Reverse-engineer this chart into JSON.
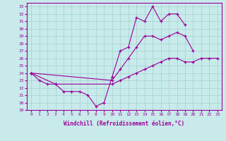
{
  "xlabel": "Windchill (Refroidissement éolien,°C)",
  "x": [
    0,
    1,
    2,
    3,
    4,
    5,
    6,
    7,
    8,
    9,
    10,
    11,
    12,
    13,
    14,
    15,
    16,
    17,
    18,
    19,
    20,
    21,
    22,
    23
  ],
  "line1": [
    24,
    23,
    22.5,
    22.5,
    21.5,
    21.5,
    21.5,
    21,
    19.5,
    20,
    23.5,
    27,
    27.5,
    31.5,
    31,
    33,
    31,
    32,
    32,
    30.5,
    null,
    null,
    null,
    null
  ],
  "line2": [
    24,
    null,
    null,
    null,
    null,
    null,
    null,
    null,
    null,
    null,
    23,
    24.5,
    26,
    27.5,
    29,
    29,
    28.5,
    29,
    29.5,
    29,
    27,
    null,
    null,
    null
  ],
  "line3": [
    24,
    null,
    null,
    22.5,
    null,
    null,
    null,
    null,
    null,
    null,
    22.5,
    23,
    23.5,
    24,
    24.5,
    25,
    25.5,
    26,
    26,
    25.5,
    25.5,
    26,
    26,
    26
  ],
  "color": "#990099",
  "bg_color": "#c8eaeb",
  "grid_color": "#aad4d5",
  "xlim": [
    -0.5,
    23.5
  ],
  "ylim": [
    19,
    33.5
  ],
  "yticks": [
    19,
    20,
    21,
    22,
    23,
    24,
    25,
    26,
    27,
    28,
    29,
    30,
    31,
    32,
    33
  ]
}
